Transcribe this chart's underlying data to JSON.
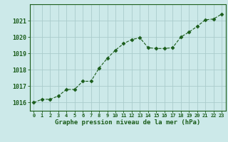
{
  "x": [
    0,
    1,
    2,
    3,
    4,
    5,
    6,
    7,
    8,
    9,
    10,
    11,
    12,
    13,
    14,
    15,
    16,
    17,
    18,
    19,
    20,
    21,
    22,
    23
  ],
  "y": [
    1016.0,
    1016.2,
    1016.2,
    1016.4,
    1016.8,
    1016.8,
    1017.3,
    1017.3,
    1018.1,
    1018.7,
    1019.2,
    1019.6,
    1019.85,
    1019.95,
    1019.35,
    1019.3,
    1019.3,
    1019.35,
    1020.0,
    1020.3,
    1020.65,
    1021.05,
    1021.1,
    1021.4
  ],
  "line_color": "#1a5c1a",
  "marker": "D",
  "marker_size": 2.5,
  "bg_color": "#cce9e9",
  "grid_color": "#aacccc",
  "xlabel": "Graphe pression niveau de la mer (hPa)",
  "xlabel_color": "#1a5c1a",
  "tick_color": "#1a5c1a",
  "ylim_min": 1015.5,
  "ylim_max": 1022.0,
  "ytick_start": 1016,
  "ytick_end": 1021,
  "ytick_step": 1
}
